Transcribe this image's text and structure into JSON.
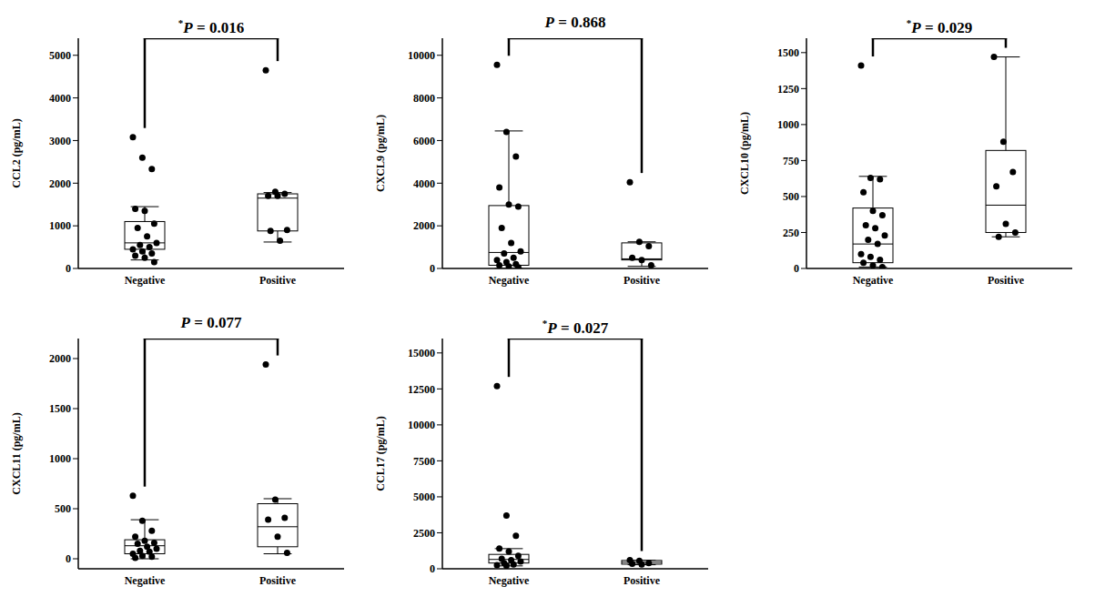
{
  "chart_data": [
    {
      "type": "box",
      "title": "*P = 0.016",
      "y_label": "CCL2 (pg/mL)",
      "categories": [
        "Negative",
        "Positive"
      ],
      "points": [
        [
          3080,
          2600,
          2330,
          1400,
          1350,
          1050,
          950,
          750,
          600,
          550,
          500,
          450,
          400,
          350,
          300,
          250,
          150
        ],
        [
          4650,
          1800,
          1750,
          1700,
          1700,
          900,
          880,
          650
        ]
      ],
      "boxes": [
        {
          "whislo": 200,
          "q1": 450,
          "med": 600,
          "q3": 1100,
          "whishi": 1450
        },
        {
          "whislo": 620,
          "q1": 880,
          "med": 1650,
          "q3": 1750,
          "whishi": 1780
        }
      ],
      "ylim": [
        0,
        5400
      ],
      "yticks": [
        0,
        1000,
        2000,
        3000,
        4000,
        5000
      ]
    },
    {
      "type": "box",
      "title": "P = 0.868",
      "y_label": "CXCL9 (pg/mL)",
      "categories": [
        "Negative",
        "Positive"
      ],
      "points": [
        [
          9550,
          6400,
          5250,
          3800,
          3000,
          2900,
          1900,
          1200,
          800,
          700,
          500,
          400,
          300,
          200,
          150,
          100,
          50
        ],
        [
          4050,
          1250,
          1050,
          500,
          400,
          150
        ]
      ],
      "boxes": [
        {
          "whislo": 0,
          "q1": 150,
          "med": 750,
          "q3": 2950,
          "whishi": 6450
        },
        {
          "whislo": 100,
          "q1": 400,
          "med": 450,
          "q3": 1200,
          "whishi": 1250
        }
      ],
      "ylim": [
        0,
        10800
      ],
      "yticks": [
        0,
        2000,
        4000,
        6000,
        8000,
        10000
      ]
    },
    {
      "type": "box",
      "title": "*P = 0.029",
      "y_label": "CXCL10 (pg/mL)",
      "categories": [
        "Negative",
        "Positive"
      ],
      "points": [
        [
          1410,
          630,
          620,
          530,
          400,
          370,
          300,
          280,
          230,
          200,
          170,
          100,
          80,
          60,
          40,
          20,
          10
        ],
        [
          1470,
          880,
          670,
          570,
          310,
          250,
          220
        ]
      ],
      "boxes": [
        {
          "whislo": 10,
          "q1": 40,
          "med": 170,
          "q3": 420,
          "whishi": 640
        },
        {
          "whislo": 220,
          "q1": 250,
          "med": 440,
          "q3": 820,
          "whishi": 1470
        }
      ],
      "ylim": [
        0,
        1600
      ],
      "yticks": [
        0,
        250,
        500,
        750,
        1000,
        1250,
        1500
      ]
    },
    {
      "type": "box",
      "title": "P = 0.077",
      "y_label": "CXCL11 (pg/mL)",
      "categories": [
        "Negative",
        "Positive"
      ],
      "points": [
        [
          630,
          380,
          280,
          220,
          180,
          160,
          150,
          120,
          100,
          80,
          70,
          50,
          30,
          20,
          10
        ],
        [
          1940,
          590,
          410,
          390,
          220,
          60
        ]
      ],
      "boxes": [
        {
          "whislo": 0,
          "q1": 50,
          "med": 130,
          "q3": 190,
          "whishi": 390
        },
        {
          "whislo": 50,
          "q1": 120,
          "med": 320,
          "q3": 550,
          "whishi": 600
        }
      ],
      "ylim": [
        -100,
        2200
      ],
      "yticks": [
        0,
        500,
        1000,
        1500,
        2000
      ]
    },
    {
      "type": "box",
      "title": "*P = 0.027",
      "y_label": "CCL17 (pg/mL)",
      "categories": [
        "Negative",
        "Positive"
      ],
      "points": [
        [
          12700,
          3700,
          2300,
          1400,
          1200,
          900,
          700,
          600,
          500,
          400,
          300,
          250,
          200
        ],
        [
          600,
          550,
          400,
          350,
          300
        ]
      ],
      "boxes": [
        {
          "whislo": 200,
          "q1": 400,
          "med": 650,
          "q3": 1000,
          "whishi": 1400
        },
        {
          "whislo": 280,
          "q1": 320,
          "med": 450,
          "q3": 580,
          "whishi": 600
        }
      ],
      "ylim": [
        0,
        16000
      ],
      "yticks": [
        0,
        2500,
        5000,
        7500,
        10000,
        12500,
        15000
      ]
    }
  ]
}
